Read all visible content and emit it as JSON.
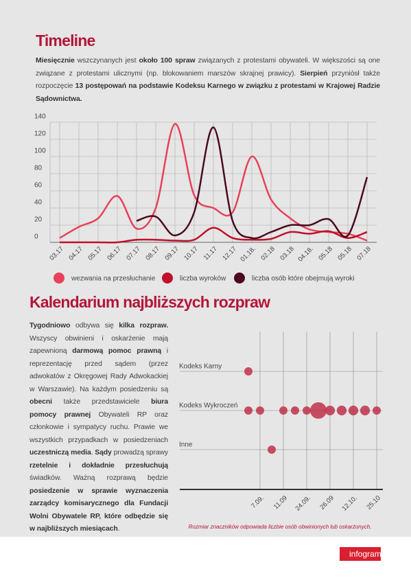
{
  "timeline": {
    "heading": "Timeline",
    "runs": [
      {
        "text": "Miesięcznie",
        "bold": true
      },
      {
        "text": " wszczynanych jest ",
        "bold": false
      },
      {
        "text": "około 100 spraw",
        "bold": true
      },
      {
        "text": " związanych z protestami obywateli. W większości są one związane z protestami ulicznymi (np. blokowaniem marszów skrajnej prawicy). ",
        "bold": false
      },
      {
        "text": "Sierpień",
        "bold": true
      },
      {
        "text": " przyniósł także rozpoczęcie ",
        "bold": false
      },
      {
        "text": "13 postępowań na podstawie Kodeksu Karnego w związku z protestami w Krajowej Radzie Sądownictwa.",
        "bold": true
      }
    ]
  },
  "calendar": {
    "heading": "Kalendarium najbliższych rozpraw",
    "runs": [
      {
        "text": "Tygodniowo",
        "bold": true
      },
      {
        "text": " odbywa się ",
        "bold": false
      },
      {
        "text": "kilka rozpraw.",
        "bold": true
      },
      {
        "text": " Wszyscy obwinieni i oskarżenie mają zapewnioną ",
        "bold": false
      },
      {
        "text": "darmową pomoc prawną",
        "bold": true
      },
      {
        "text": " i reprezentację przed sądem (przez adwokatów z Okręgowej Rady Adwokackiej w Warszawie). Na każdym posiedzeniu są ",
        "bold": false
      },
      {
        "text": "obecni",
        "bold": true
      },
      {
        "text": " także przedstawiciele ",
        "bold": false
      },
      {
        "text": "biura pomocy prawnej",
        "bold": true
      },
      {
        "text": " Obywateli RP oraz członkowie i sympatycy ruchu. Prawie we wszystkich przypadkach w posiedzeniach ",
        "bold": false
      },
      {
        "text": "uczestniczą media",
        "bold": true
      },
      {
        "text": ". ",
        "bold": false
      },
      {
        "text": "Sądy",
        "bold": true
      },
      {
        "text": " prowadzą sprawy ",
        "bold": false
      },
      {
        "text": "rzetelnie i dokładnie przesłuchują",
        "bold": true
      },
      {
        "text": " świadków. Ważną rozprawą będzie ",
        "bold": false
      },
      {
        "text": "posiedzenie w sprawie wyznaczenia zarządcy komisarycznego dla Fundacji Wolni Obywatele RP, które odbędzie się w najbliższych miesiącach",
        "bold": true
      },
      {
        "text": ".",
        "bold": false
      }
    ]
  },
  "chart_data": [
    {
      "type": "line",
      "categories": [
        "03.17",
        "04.17",
        "05.17",
        "06.17",
        "07.17",
        "08.17",
        "09.17",
        "10.17",
        "11.17",
        "12.17",
        "01.18.",
        "02.18",
        "03.18",
        "04.18.",
        "05.18",
        "05.18",
        "07.18"
      ],
      "ylim": [
        0,
        140
      ],
      "yticks": [
        0,
        20,
        40,
        60,
        80,
        100,
        120,
        140
      ],
      "grid": true,
      "series": [
        {
          "name": "wezwania na przesłuchanie",
          "color": "#e8415a",
          "values": [
            5,
            18,
            28,
            54,
            16,
            40,
            138,
            55,
            40,
            35,
            100,
            50,
            28,
            15,
            12,
            10,
            2
          ]
        },
        {
          "name": "liczba wyroków",
          "color": "#c0102a",
          "values": [
            0,
            0,
            0,
            0,
            3,
            3,
            2,
            3,
            17,
            5,
            3,
            4,
            12,
            10,
            13,
            5,
            12
          ]
        },
        {
          "name": "liczba osób które obejmują wyroki",
          "color": "#4a0a1c",
          "values": [
            null,
            null,
            null,
            null,
            25,
            30,
            8,
            35,
            134,
            25,
            5,
            12,
            20,
            20,
            27,
            8,
            76
          ]
        }
      ]
    },
    {
      "type": "bubble",
      "categories": [
        "Kodeks Karny",
        "Kodeks Wykroczeń",
        "Inne"
      ],
      "x": [
        null,
        "7.09.",
        null,
        "11.09",
        null,
        "24.09.",
        null,
        "26.09",
        null,
        "12.10.",
        null,
        "25.10"
      ],
      "color": "#c0304a",
      "series": [
        {
          "values": [
            1,
            null,
            null,
            null,
            null,
            null,
            null,
            null,
            null,
            null,
            null,
            null
          ]
        },
        {
          "values": [
            1,
            1,
            null,
            1,
            1,
            1,
            4,
            1.4,
            1.4,
            1.4,
            1.4,
            1
          ]
        },
        {
          "values": [
            null,
            null,
            1,
            null,
            null,
            null,
            null,
            null,
            null,
            null,
            null,
            null
          ]
        }
      ],
      "note": "Rozmiar znaczników odpowiada liczbie osób obwinionych lub oskarżonych."
    }
  ],
  "footer": {
    "brand": "infogram"
  }
}
